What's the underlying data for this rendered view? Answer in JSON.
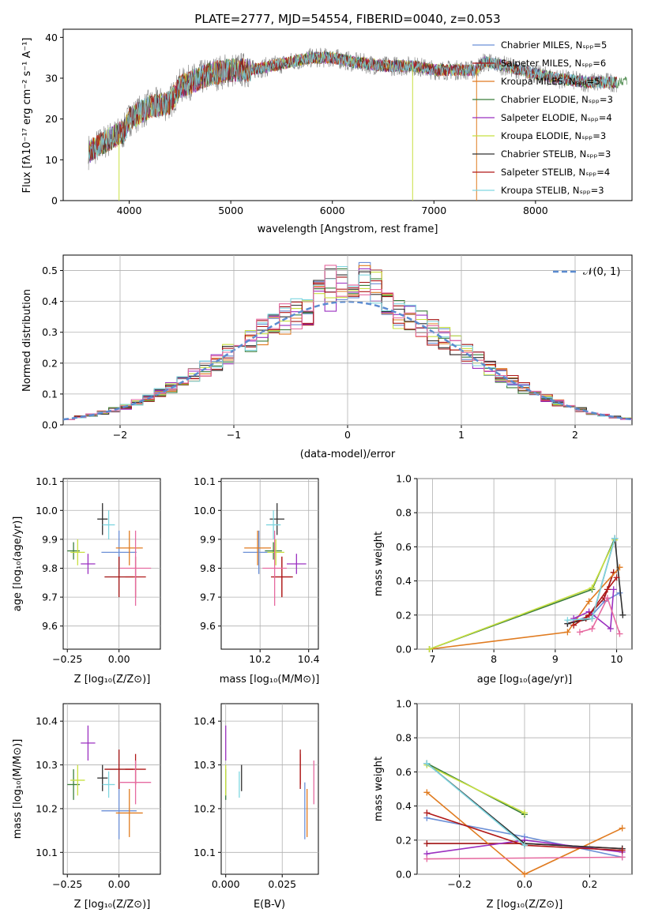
{
  "colors": {
    "chabrier_miles": "#6b8fd6",
    "salpeter_miles": "#a01010",
    "kroupa_miles": "#e07b20",
    "chabrier_elodie": "#3a7d3a",
    "salpeter_elodie": "#9b30c0",
    "kroupa_elodie": "#c8e040",
    "chabrier_stelib": "#303030",
    "salpeter_stelib": "#b01818",
    "kroupa_stelib": "#7fd6e0",
    "pink": "#e66aa0",
    "gaussian": "#5b8bd0"
  },
  "chart_data": [
    {
      "id": "spectrum",
      "type": "line",
      "title": "PLATE=2777, MJD=54554, FIBERID=0040, z=0.053",
      "xlabel": "wavelength [Angstrom, rest frame]",
      "ylabel": "Flux [fλ10⁻¹⁷ erg cm⁻² s⁻¹ A⁻¹]",
      "xlim": [
        3350,
        8950
      ],
      "ylim": [
        0,
        42
      ],
      "xticks": [
        "4000",
        "5000",
        "6000",
        "7000",
        "8000"
      ],
      "yticks": [
        "0",
        "10",
        "20",
        "30",
        "40"
      ],
      "legend": [
        "Chabrier MILES, Nₛₚₚ=5",
        "Salpeter MILES, Nₛₚₚ=6",
        "Kroupa MILES, Nₛₚₚ=5",
        "Chabrier ELODIE, Nₛₚₚ=3",
        "Salpeter ELODIE, Nₛₚₚ=4",
        "Kroupa ELODIE, Nₛₚₚ=3",
        "Chabrier STELIB, Nₛₚₚ=3",
        "Salpeter STELIB, Nₛₚₚ=4",
        "Kroupa STELIB, Nₛₚₚ=3"
      ],
      "continuum_x": [
        3600,
        3800,
        3950,
        4000,
        4200,
        4400,
        4500,
        4800,
        5000,
        5200,
        5400,
        5600,
        5800,
        6000,
        6200,
        6500,
        6800,
        7000,
        7200,
        7400,
        7500,
        7700,
        8000,
        8200,
        8500,
        8800
      ],
      "continuum_y": [
        12,
        15,
        17,
        20,
        23,
        24,
        28,
        31,
        32,
        32,
        33,
        34,
        35,
        35,
        34,
        33,
        33,
        32,
        32,
        32,
        34,
        33,
        31,
        30,
        29,
        29
      ]
    },
    {
      "id": "residuals",
      "type": "line",
      "xlabel": "(data-model)/error",
      "ylabel": "Normed distribution",
      "xlim": [
        -2.5,
        2.5
      ],
      "ylim": [
        0,
        0.55
      ],
      "xticks": [
        "−2",
        "−1",
        "0",
        "1",
        "2"
      ],
      "yticks": [
        "0.0",
        "0.1",
        "0.2",
        "0.3",
        "0.4",
        "0.5"
      ],
      "legend": [
        "𝒩(0, 1)"
      ]
    },
    {
      "id": "age_vs_Z",
      "type": "scatter",
      "xlabel": "Z [log₁₀(Z/Z⊙)]",
      "ylabel": "age  [log₁₀(age/yr)]",
      "xlim": [
        -0.27,
        0.2
      ],
      "ylim": [
        9.52,
        10.11
      ],
      "xticks": [
        "−0.25",
        "0.00"
      ],
      "yticks": [
        "9.6",
        "9.7",
        "9.8",
        "9.9",
        "10.0",
        "10.1"
      ]
    },
    {
      "id": "age_vs_mass",
      "type": "scatter",
      "xlabel": "mass [log₁₀(M/M⊙)]",
      "xlim": [
        10.04,
        10.44
      ],
      "ylim": [
        9.52,
        10.11
      ],
      "xticks": [
        "10.2",
        "10.4"
      ],
      "yticks": [
        "9.6",
        "9.7",
        "9.8",
        "9.9",
        "10.0",
        "10.1"
      ]
    },
    {
      "id": "weight_vs_age",
      "type": "line",
      "xlabel": "age  [log₁₀(age/yr)]",
      "ylabel": "mass weight",
      "xlim": [
        6.75,
        10.25
      ],
      "ylim": [
        0,
        1
      ],
      "xticks": [
        "7",
        "8",
        "9",
        "10"
      ],
      "yticks": [
        "0.0",
        "0.2",
        "0.4",
        "0.6",
        "0.8",
        "1.0"
      ]
    },
    {
      "id": "mass_vs_Z",
      "type": "scatter",
      "xlabel": "Z [log₁₀(Z/Z⊙)]",
      "ylabel": "mass [log₁₀(M/M⊙)]",
      "xlim": [
        -0.27,
        0.2
      ],
      "ylim": [
        10.05,
        10.44
      ],
      "xticks": [
        "−0.25",
        "0.00"
      ],
      "yticks": [
        "10.1",
        "10.2",
        "10.3",
        "10.4"
      ]
    },
    {
      "id": "mass_vs_ebv",
      "type": "scatter",
      "xlabel": "E(B-V)",
      "xlim": [
        -0.002,
        0.041
      ],
      "ylim": [
        10.05,
        10.44
      ],
      "xticks": [
        "0.000",
        "0.025"
      ],
      "yticks": [
        "10.1",
        "10.2",
        "10.3",
        "10.4"
      ]
    },
    {
      "id": "weight_vs_Z",
      "type": "line",
      "xlabel": "Z [log₁₀(Z/Z⊙)]",
      "ylabel": "mass weight",
      "xlim": [
        -0.33,
        0.33
      ],
      "ylim": [
        0,
        1
      ],
      "xticks": [
        "−0.2",
        "0.0",
        "0.2"
      ],
      "yticks": [
        "0.0",
        "0.2",
        "0.4",
        "0.6",
        "0.8",
        "1.0"
      ]
    }
  ],
  "models": [
    {
      "color": "#6b8fd6",
      "age": 9.855,
      "age_err": 0.15,
      "Z": 0.0,
      "Z_err": 0.17,
      "mass": 10.195,
      "mass_err": 0.13,
      "ebv": 0.035,
      "ebv_err": 0.06,
      "ages": [
        9.2,
        9.6,
        9.8,
        10.05
      ],
      "w_age": [
        0.15,
        0.2,
        0.28,
        0.33
      ],
      "Zs": [
        -0.3,
        0.0,
        0.3
      ],
      "w_Z": [
        0.33,
        0.22,
        0.1
      ]
    },
    {
      "color": "#a01010",
      "age": 9.77,
      "age_err": 0.14,
      "Z": 0.0,
      "Z_err": 0.14,
      "mass": 10.29,
      "mass_err": 0.09,
      "ebv": 0.033,
      "ebv_err": 0.05,
      "ages": [
        9.2,
        9.5,
        9.8,
        9.95
      ],
      "w_age": [
        0.15,
        0.18,
        0.3,
        0.45
      ],
      "Zs": [
        -0.3,
        0.0,
        0.3
      ],
      "w_Z": [
        0.18,
        0.18,
        0.15
      ]
    },
    {
      "color": "#e07b20",
      "age": 9.87,
      "age_err": 0.12,
      "Z": 0.05,
      "Z_err": 0.13,
      "mass": 10.19,
      "mass_err": 0.11,
      "ebv": 0.036,
      "ebv_err": 0.08,
      "ages": [
        6.95,
        9.2,
        9.55,
        10.05
      ],
      "w_age": [
        0.0,
        0.1,
        0.28,
        0.48
      ],
      "Zs": [
        -0.3,
        0.0,
        0.3
      ],
      "w_Z": [
        0.48,
        0.0,
        0.27
      ]
    },
    {
      "color": "#3a7d3a",
      "age": 9.86,
      "age_err": 0.06,
      "Z": -0.22,
      "Z_err": 0.06,
      "mass": 10.255,
      "mass_err": 0.07,
      "ebv": 0.0,
      "ebv_err": 0.06,
      "ages": [
        6.95,
        9.6,
        9.97
      ],
      "w_age": [
        0.0,
        0.35,
        0.65
      ],
      "Zs": [
        -0.3,
        0.0
      ],
      "w_Z": [
        0.65,
        0.35
      ]
    },
    {
      "color": "#9b30c0",
      "age": 9.815,
      "age_err": 0.07,
      "Z": -0.15,
      "Z_err": 0.07,
      "mass": 10.35,
      "mass_err": 0.08,
      "ebv": 0.0,
      "ebv_err": 0.07,
      "ages": [
        9.3,
        9.55,
        9.9,
        9.95
      ],
      "w_age": [
        0.18,
        0.22,
        0.12,
        0.35
      ],
      "Zs": [
        -0.3,
        0.0,
        0.3
      ],
      "w_Z": [
        0.12,
        0.2,
        0.13
      ]
    },
    {
      "color": "#c8e040",
      "age": 9.855,
      "age_err": 0.09,
      "Z": -0.2,
      "Z_err": 0.07,
      "mass": 10.265,
      "mass_err": 0.07,
      "ebv": 0.0,
      "ebv_err": 0.06,
      "ages": [
        6.95,
        9.6,
        9.97
      ],
      "w_age": [
        0.0,
        0.36,
        0.64
      ],
      "Zs": [
        -0.3,
        0.0
      ],
      "w_Z": [
        0.64,
        0.36
      ]
    },
    {
      "color": "#303030",
      "age": 9.97,
      "age_err": 0.11,
      "Z": -0.08,
      "Z_err": 0.05,
      "mass": 10.27,
      "mass_err": 0.06,
      "ebv": 0.007,
      "ebv_err": 0.06,
      "ages": [
        9.2,
        9.6,
        9.97,
        10.1
      ],
      "w_age": [
        0.15,
        0.18,
        0.65,
        0.2
      ],
      "Zs": [
        -0.3,
        0.0,
        0.3
      ],
      "w_Z": [
        0.65,
        0.18,
        0.15
      ]
    },
    {
      "color": "#b01818",
      "age": 9.77,
      "age_err": 0.14,
      "Z": 0.08,
      "Z_err": 0.1,
      "mass": 10.29,
      "mass_err": 0.07,
      "ebv": 0.033,
      "ebv_err": 0.06,
      "ages": [
        9.3,
        9.55,
        9.85,
        10.0
      ],
      "w_age": [
        0.14,
        0.2,
        0.35,
        0.42
      ],
      "Zs": [
        -0.3,
        0.0,
        0.3
      ],
      "w_Z": [
        0.36,
        0.17,
        0.14
      ]
    },
    {
      "color": "#7fd6e0",
      "age": 9.95,
      "age_err": 0.1,
      "Z": -0.05,
      "Z_err": 0.06,
      "mass": 10.255,
      "mass_err": 0.06,
      "ebv": 0.006,
      "ebv_err": 0.05,
      "ages": [
        9.2,
        9.6,
        9.97
      ],
      "w_age": [
        0.17,
        0.18,
        0.65
      ],
      "Zs": [
        -0.3,
        0.0
      ],
      "w_Z": [
        0.65,
        0.17
      ]
    },
    {
      "color": "#e66aa0",
      "age": 9.8,
      "age_err": 0.26,
      "Z": 0.08,
      "Z_err": 0.15,
      "mass": 10.26,
      "mass_err": 0.1,
      "ebv": 0.039,
      "ebv_err": 0.09,
      "ages": [
        9.4,
        9.6,
        9.85,
        10.05
      ],
      "w_age": [
        0.1,
        0.12,
        0.3,
        0.09
      ],
      "Zs": [
        -0.3,
        0.3
      ],
      "w_Z": [
        0.09,
        0.1
      ]
    }
  ]
}
